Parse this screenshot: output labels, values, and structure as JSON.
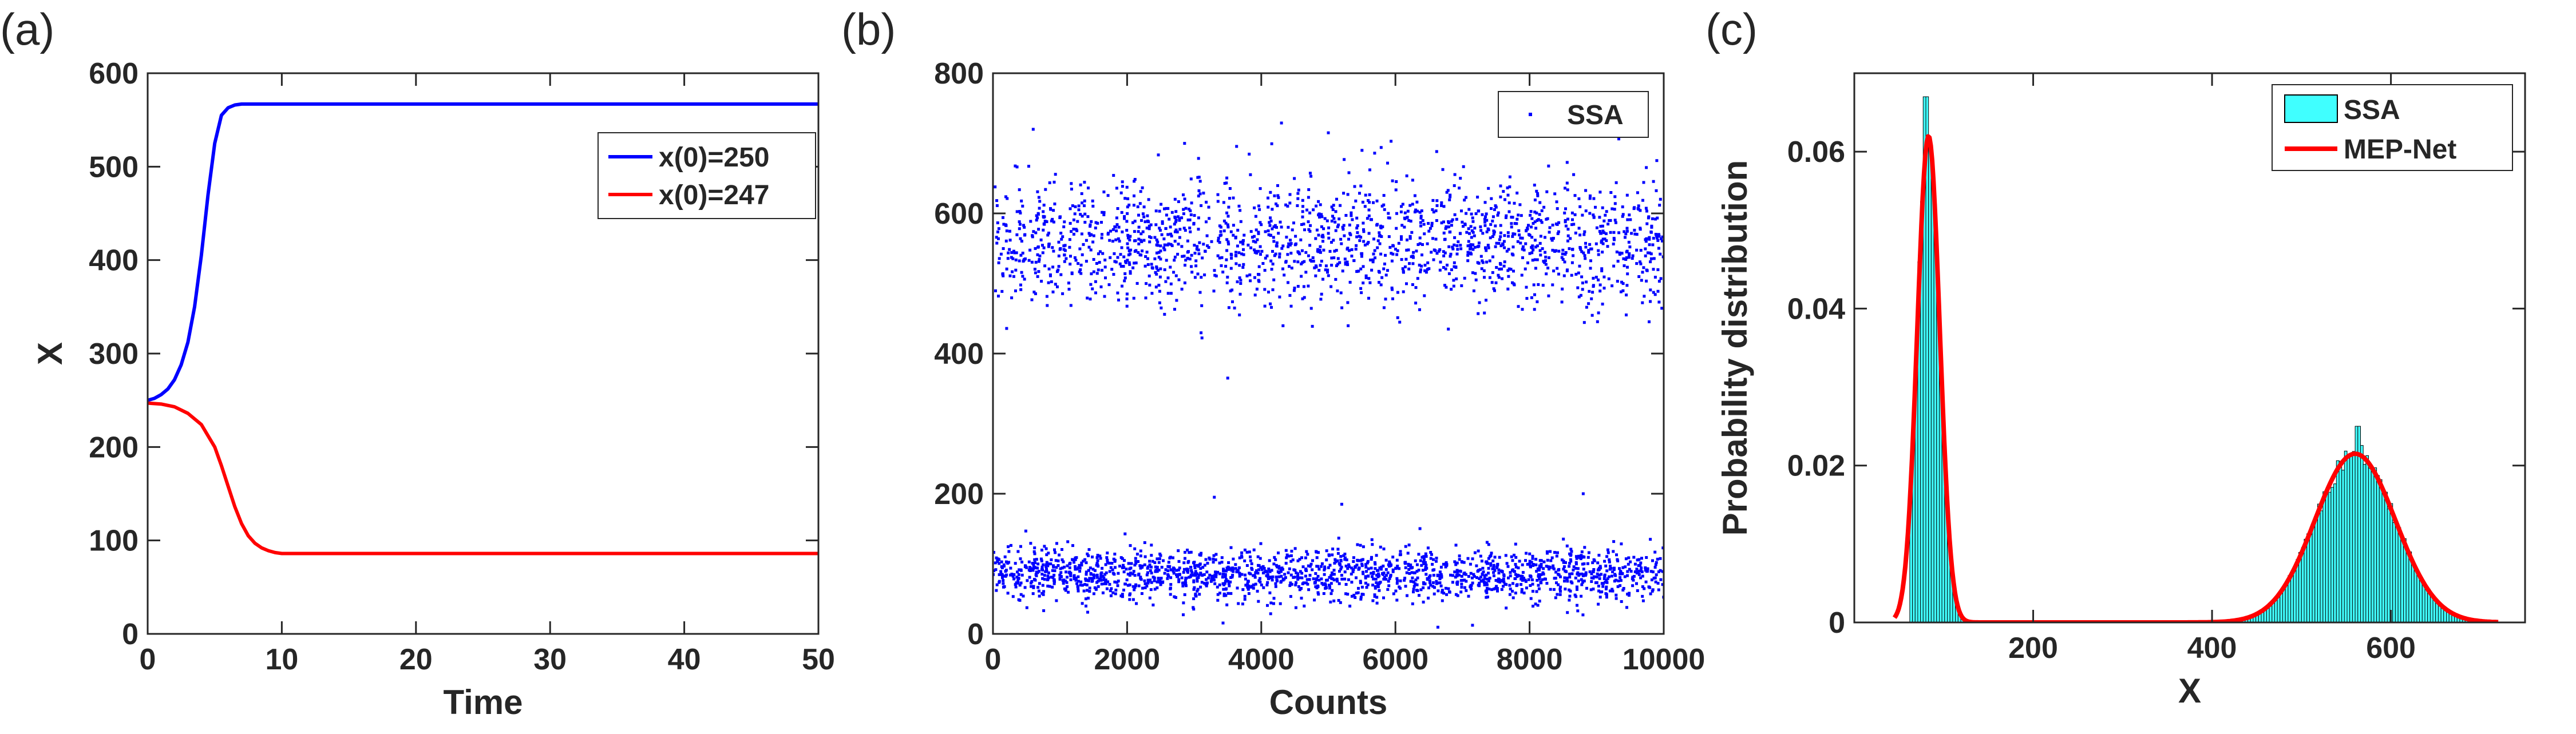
{
  "chart_data": [
    {
      "panel": "(a)",
      "type": "line",
      "xlabel": "Time",
      "ylabel": "X",
      "xlim": [
        0,
        50
      ],
      "ylim": [
        0,
        600
      ],
      "xticks": [
        0,
        10,
        20,
        30,
        40,
        50
      ],
      "yticks": [
        0,
        100,
        200,
        300,
        400,
        500,
        600
      ],
      "legend": "top-right",
      "series": [
        {
          "name": "x(0)=250",
          "color": "#0000ff",
          "x": [
            0,
            0.5,
            1,
            1.5,
            2,
            2.5,
            3,
            3.5,
            4,
            4.5,
            5,
            5.5,
            6,
            6.5,
            7,
            7.5,
            8,
            9,
            10,
            15,
            20,
            30,
            40,
            50
          ],
          "y": [
            250,
            252,
            256,
            262,
            272,
            288,
            312,
            350,
            405,
            470,
            525,
            555,
            563,
            566,
            567,
            567,
            567,
            567,
            567,
            567,
            567,
            567,
            567,
            567
          ]
        },
        {
          "name": "x(0)=247",
          "color": "#ff0000",
          "x": [
            0,
            1,
            2,
            3,
            4,
            5,
            5.5,
            6,
            6.5,
            7,
            7.5,
            8,
            8.5,
            9,
            9.5,
            10,
            10.5,
            11,
            12,
            15,
            20,
            30,
            40,
            50
          ],
          "y": [
            247,
            246,
            243,
            236,
            224,
            200,
            180,
            158,
            136,
            118,
            105,
            97,
            92,
            89,
            87,
            86,
            86,
            86,
            86,
            86,
            86,
            86,
            86,
            86
          ]
        }
      ]
    },
    {
      "panel": "(b)",
      "type": "scatter",
      "xlabel": "Counts",
      "ylabel": "",
      "xlim": [
        0,
        10000
      ],
      "ylim": [
        0,
        800
      ],
      "xticks": [
        0,
        2000,
        4000,
        6000,
        8000,
        10000
      ],
      "yticks": [
        0,
        200,
        400,
        600,
        800
      ],
      "legend": "top-right",
      "series": [
        {
          "name": "SSA",
          "color": "#0000ff",
          "n_points": 10000,
          "clusters": [
            {
              "center": 560,
              "spread": 45,
              "fraction": 0.5
            },
            {
              "center": 85,
              "spread": 18,
              "fraction": 0.5
            }
          ]
        }
      ]
    },
    {
      "panel": "(c)",
      "type": "bar",
      "xlabel": "X",
      "ylabel": "Probability distribution",
      "xlim": [
        0,
        750
      ],
      "ylim": [
        0,
        0.07
      ],
      "xticks": [
        200,
        400,
        600
      ],
      "yticks": [
        0,
        0.02,
        0.04,
        0.06
      ],
      "legend": "top-right",
      "series": [
        {
          "name": "SSA",
          "kind": "histogram",
          "color": "#40ffff",
          "edge_color": "#000000",
          "bin_start": 62,
          "bin_width": 3,
          "counts_from_model": true,
          "peaks": [
            {
              "x": 80,
              "value": 0.067
            },
            {
              "x": 563,
              "value": 0.025
            }
          ]
        },
        {
          "name": "MEP-Net",
          "kind": "curve",
          "color": "#ff0000",
          "components": [
            {
              "mean": 83,
              "sigma": 12.5,
              "peak": 0.062
            },
            {
              "mean": 560,
              "sigma": 45,
              "peak": 0.0215
            }
          ],
          "x_range": [
            45,
            720
          ]
        }
      ]
    }
  ]
}
